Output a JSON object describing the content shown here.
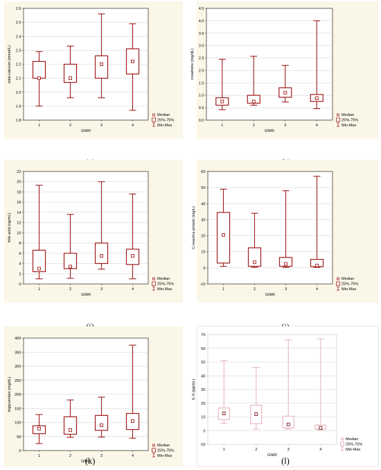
{
  "chart_data": [
    {
      "type": "boxplot",
      "panel": "(g)",
      "xlabel": "GNRI",
      "ylabel": "total calcium (mmol/L)",
      "categories": [
        "1",
        "2",
        "3",
        "4"
      ],
      "ylim": [
        1.8,
        2.6
      ],
      "yticks": [
        "1.8",
        "1.9",
        "2.0",
        "2.1",
        "2.2",
        "2.3",
        "2.4",
        "2.5",
        "2.6"
      ],
      "boxes": [
        {
          "min": 1.9,
          "q1": 2.1,
          "median": 2.1,
          "q3": 2.22,
          "max": 2.29
        },
        {
          "min": 1.96,
          "q1": 2.07,
          "median": 2.1,
          "q3": 2.2,
          "max": 2.33
        },
        {
          "min": 1.96,
          "q1": 2.1,
          "median": 2.2,
          "q3": 2.26,
          "max": 2.56
        },
        {
          "min": 1.87,
          "q1": 2.13,
          "median": 2.22,
          "q3": 2.31,
          "max": 2.49
        }
      ],
      "legend": [
        "Median",
        "25%-75%",
        "Min-Max"
      ],
      "color": "#a01b1b"
    },
    {
      "type": "boxplot",
      "panel": "(h)",
      "xlabel": "GNRI",
      "ylabel": "creatinine (mg/dL)",
      "categories": [
        "1",
        "2",
        "3",
        "4"
      ],
      "ylim": [
        0.0,
        4.5
      ],
      "yticks": [
        "0.0",
        "0.5",
        "1.0",
        "1.5",
        "2.0",
        "2.5",
        "3.0",
        "3.5",
        "4.0",
        "4.5"
      ],
      "boxes": [
        {
          "min": 0.42,
          "q1": 0.6,
          "median": 0.75,
          "q3": 0.9,
          "max": 2.45
        },
        {
          "min": 0.6,
          "q1": 0.68,
          "median": 0.75,
          "q3": 1.0,
          "max": 2.57
        },
        {
          "min": 0.73,
          "q1": 0.92,
          "median": 1.1,
          "q3": 1.3,
          "max": 2.2
        },
        {
          "min": 0.46,
          "q1": 0.75,
          "median": 0.88,
          "q3": 1.03,
          "max": 4.0
        }
      ],
      "legend": [
        "Median",
        "25%-75%",
        "Min-Max"
      ],
      "color": "#a01b1b"
    },
    {
      "type": "boxplot",
      "panel": "(i)",
      "xlabel": "GNRI",
      "ylabel": "folic acid (ng/mL)",
      "categories": [
        "1",
        "2",
        "3",
        "4"
      ],
      "ylim": [
        0,
        22
      ],
      "yticks": [
        "0",
        "2",
        "4",
        "6",
        "8",
        "10",
        "12",
        "14",
        "16",
        "18",
        "20",
        "22"
      ],
      "boxes": [
        {
          "min": 1.0,
          "q1": 2.4,
          "median": 3.0,
          "q3": 6.6,
          "max": 19.3
        },
        {
          "min": 1.1,
          "q1": 3.0,
          "median": 3.4,
          "q3": 6.0,
          "max": 13.6
        },
        {
          "min": 2.9,
          "q1": 4.0,
          "median": 5.5,
          "q3": 8.0,
          "max": 20.0
        },
        {
          "min": 1.0,
          "q1": 3.8,
          "median": 5.5,
          "q3": 6.8,
          "max": 17.6
        }
      ],
      "legend": [
        "Median",
        "25%-75%",
        "Min-Max"
      ],
      "color": "#a01b1b"
    },
    {
      "type": "boxplot",
      "panel": "(j)",
      "xlabel": "GNRI",
      "ylabel": "C-reactive protein (mg/L)",
      "categories": [
        "1",
        "2",
        "3",
        "4"
      ],
      "ylim": [
        -10,
        60
      ],
      "yticks": [
        "-10",
        "0",
        "10",
        "20",
        "30",
        "40",
        "50",
        "60"
      ],
      "boxes": [
        {
          "min": 1.0,
          "q1": 3.0,
          "median": 20.5,
          "q3": 34.5,
          "max": 49.0
        },
        {
          "min": 0.3,
          "q1": 1.0,
          "median": 3.5,
          "q3": 12.5,
          "max": 34.0
        },
        {
          "min": 0.3,
          "q1": 1.0,
          "median": 2.5,
          "q3": 6.5,
          "max": 48.0
        },
        {
          "min": 0.3,
          "q1": 0.8,
          "median": 1.5,
          "q3": 5.3,
          "max": 57.0
        }
      ],
      "legend": [
        "Median",
        "25%-75%",
        "Min-Max"
      ],
      "color": "#a01b1b"
    },
    {
      "type": "boxplot",
      "panel": "(k)",
      "xlabel": "GNRI",
      "ylabel": "triglycerides (mg/dL)",
      "categories": [
        "1",
        "2",
        "3",
        "4"
      ],
      "ylim": [
        0,
        400
      ],
      "yticks": [
        "0",
        "50",
        "100",
        "150",
        "200",
        "250",
        "300",
        "350",
        "400"
      ],
      "boxes": [
        {
          "min": 25,
          "q1": 60,
          "median": 78,
          "q3": 88,
          "max": 128
        },
        {
          "min": 47,
          "q1": 58,
          "median": 73,
          "q3": 120,
          "max": 180
        },
        {
          "min": 48,
          "q1": 72,
          "median": 90,
          "q3": 125,
          "max": 190
        },
        {
          "min": 44,
          "q1": 75,
          "median": 105,
          "q3": 132,
          "max": 375
        }
      ],
      "legend": [
        "Median",
        "25%-75%",
        "Min-Max"
      ],
      "color": "#a01b1b"
    },
    {
      "type": "boxplot",
      "panel": "(l)",
      "xlabel": "GNRI",
      "ylabel": "IL-6 (pg/mL)",
      "categories": [
        "1",
        "2",
        "3",
        "4"
      ],
      "ylim": [
        -10,
        70
      ],
      "yticks": [
        "-10",
        "0",
        "10",
        "20",
        "30",
        "40",
        "50",
        "60",
        "70"
      ],
      "boxes": [
        {
          "min": 5.5,
          "q1": 8.0,
          "median": 12.5,
          "q3": 16.5,
          "max": 51.0
        },
        {
          "min": 1.0,
          "q1": 5.0,
          "median": 12.0,
          "q3": 18.5,
          "max": 46.0
        },
        {
          "min": 1.0,
          "q1": 2.0,
          "median": 4.5,
          "q3": 10.5,
          "max": 66.0
        },
        {
          "min": 0.5,
          "q1": 1.0,
          "median": 2.0,
          "q3": 4.0,
          "max": 67.0
        }
      ],
      "legend": [
        "Median",
        "25%-75%",
        "Min-Max"
      ],
      "color": "#e0a0b2"
    }
  ]
}
